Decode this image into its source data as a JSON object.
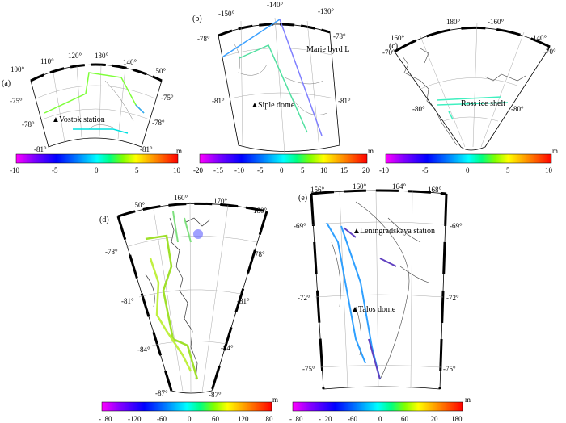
{
  "panels": [
    {
      "id": "a",
      "label": "(a)",
      "lon_labels": [
        "100°",
        "110°",
        "120°",
        "130°",
        "140°",
        "150°"
      ],
      "lat_labels_left": [
        "-75°",
        "-78°",
        "-81°"
      ],
      "lat_labels_right": [
        "-75°",
        "-78°",
        "-81°"
      ],
      "annotations": [
        {
          "marker": "▲",
          "text": "Vostok station"
        }
      ],
      "colorbar": {
        "ticks": [
          "-10",
          "-5",
          "0",
          "5",
          "10"
        ],
        "unit": "m",
        "range": [
          -10,
          10
        ]
      }
    },
    {
      "id": "b",
      "label": "(b)",
      "lon_labels": [
        "-150°",
        "-140°",
        "-130°"
      ],
      "lat_labels_left": [
        "-78°",
        "-81°"
      ],
      "lat_labels_right": [
        "-78°",
        "-81°"
      ],
      "annotations": [
        {
          "marker": "",
          "text": "Marie byrd L"
        },
        {
          "marker": "▲",
          "text": "Siple dome"
        }
      ],
      "colorbar": {
        "ticks": [
          "-20",
          "-15",
          "-10",
          "-5",
          "0",
          "5",
          "10",
          "15",
          "20"
        ],
        "unit": "m",
        "range": [
          -20,
          20
        ]
      }
    },
    {
      "id": "c",
      "label": "(c)",
      "lon_labels": [
        "160°",
        "180°",
        "-160°",
        "-140°"
      ],
      "lat_labels_left": [
        "-70°",
        "-80°"
      ],
      "lat_labels_right": [
        "-70°",
        "-80°"
      ],
      "annotations": [
        {
          "marker": "",
          "text": "Ross ice shelt"
        }
      ],
      "colorbar": {
        "ticks": [
          "-10",
          "-5",
          "0",
          "5",
          "10"
        ],
        "unit": "m",
        "range": [
          -10,
          10
        ]
      }
    },
    {
      "id": "d",
      "label": "(d)",
      "lon_labels": [
        "150°",
        "160°",
        "170°",
        "180°"
      ],
      "lat_labels_left": [
        "-78°",
        "-81°",
        "-84°",
        "-87°"
      ],
      "lat_labels_right": [
        "-78°",
        "-81°",
        "-84°",
        "-87°"
      ],
      "annotations": [],
      "colorbar": {
        "ticks": [
          "-180",
          "-120",
          "-60",
          "0",
          "60",
          "120",
          "180"
        ],
        "unit": "m",
        "range": [
          -180,
          180
        ]
      }
    },
    {
      "id": "e",
      "label": "(e)",
      "lon_labels": [
        "156°",
        "160°",
        "164°",
        "168°"
      ],
      "lat_labels_left": [
        "-69°",
        "-72°",
        "-75°"
      ],
      "lat_labels_right": [
        "-69°",
        "-72°",
        "-75°"
      ],
      "annotations": [
        {
          "marker": "▲",
          "text": "Leningradskaya station"
        },
        {
          "marker": "▲",
          "text": "Talos dome"
        }
      ],
      "colorbar": {
        "ticks": [
          "-180",
          "-120",
          "-60",
          "0",
          "60",
          "120",
          "180"
        ],
        "unit": "m",
        "range": [
          -180,
          180
        ]
      }
    }
  ],
  "colormap": [
    "#ff00ff",
    "#8000ff",
    "#0000ff",
    "#0080ff",
    "#00ffff",
    "#00ff80",
    "#80ff00",
    "#ffff00",
    "#ff8000",
    "#ff0000"
  ]
}
